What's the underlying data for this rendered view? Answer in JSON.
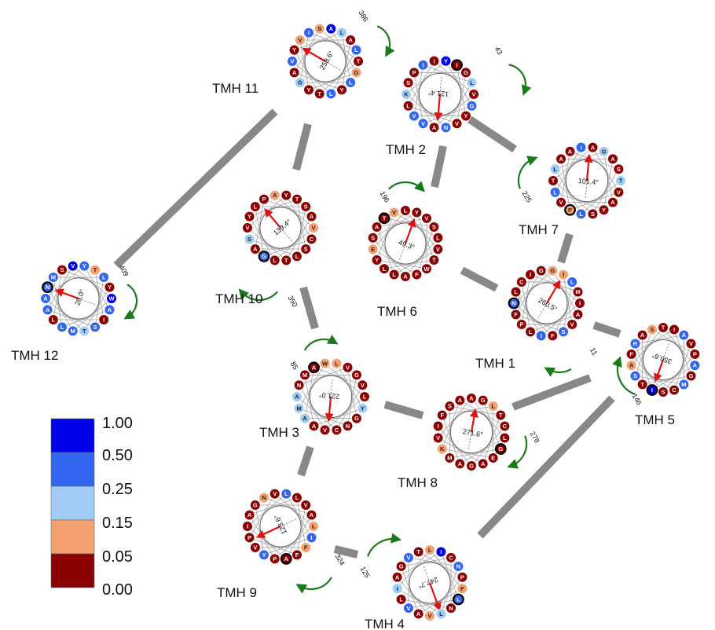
{
  "colors": {
    "scale": [
      "#8b0000",
      "#f5a070",
      "#9fcbf5",
      "#3366f0",
      "#0000e8"
    ],
    "arrow": "#e01010",
    "moment_arrow": "#1a7a1a",
    "connector": "#888888",
    "spoke": "#9a9a9a"
  },
  "legend": {
    "labels": [
      "1.00",
      "0.50",
      "0.25",
      "0.15",
      "0.05",
      "0.00"
    ]
  },
  "helices": [
    {
      "id": "tmh11",
      "label": "TMH 11",
      "angle": "258.6°",
      "start": "386",
      "start_circled": false,
      "residues": [
        {
          "c": "A",
          "v": 4
        },
        {
          "c": "G",
          "v": 1
        },
        {
          "c": "Y",
          "v": 0
        },
        {
          "c": "V",
          "v": 1
        },
        {
          "c": "A",
          "v": 0
        },
        {
          "c": "Y",
          "v": 0
        },
        {
          "c": "A",
          "v": 0
        },
        {
          "c": "S",
          "v": 1
        },
        {
          "c": "T",
          "v": 0
        },
        {
          "c": "T",
          "v": 0
        },
        {
          "c": "Y",
          "v": 0
        },
        {
          "c": "L",
          "v": 2
        },
        {
          "c": "L",
          "v": 3
        },
        {
          "c": "G",
          "v": 2
        },
        {
          "c": "I",
          "v": 3
        },
        {
          "c": "L",
          "v": 3
        },
        {
          "c": "L",
          "v": 3
        },
        {
          "c": "V",
          "v": 3
        }
      ]
    },
    {
      "id": "tmh2",
      "label": "TMH  2",
      "angle": "121.4°",
      "start": "43",
      "start_circled": true,
      "residues": [
        {
          "c": "I",
          "v": 0
        },
        {
          "c": "Y",
          "v": 0
        },
        {
          "c": "V",
          "v": 3
        },
        {
          "c": "I",
          "v": 3
        },
        {
          "c": "L",
          "v": 2
        },
        {
          "c": "N",
          "v": 3
        },
        {
          "c": "K",
          "v": 2
        },
        {
          "c": "Y",
          "v": 4
        },
        {
          "c": "G",
          "v": 3
        },
        {
          "c": "V",
          "v": 3
        },
        {
          "c": "P",
          "v": 0
        },
        {
          "c": "G",
          "v": 0
        },
        {
          "c": "V",
          "v": 0
        },
        {
          "c": "L",
          "v": 0
        },
        {
          "c": "I",
          "v": 0
        },
        {
          "c": "V",
          "v": 0
        },
        {
          "c": "A",
          "v": 0
        },
        {
          "c": "S",
          "v": 0
        }
      ]
    },
    {
      "id": "tmh7",
      "label": "TMH  7",
      "angle": "101.4°",
      "start": "225",
      "start_circled": true,
      "residues": [
        {
          "c": "T",
          "v": 2
        },
        {
          "c": "L",
          "v": 3
        },
        {
          "c": "L",
          "v": 2
        },
        {
          "c": "G",
          "v": 2
        },
        {
          "c": "A",
          "v": 0
        },
        {
          "c": "V",
          "v": 0
        },
        {
          "c": "A",
          "v": 0
        },
        {
          "c": "S",
          "v": 0
        },
        {
          "c": "S",
          "v": 0
        },
        {
          "c": "T",
          "v": 0
        },
        {
          "c": "A",
          "v": 0
        },
        {
          "c": "V",
          "v": 0
        },
        {
          "c": "P",
          "v": 1
        },
        {
          "c": "A",
          "v": 0
        },
        {
          "c": "A",
          "v": 0
        },
        {
          "c": "Y",
          "v": 0
        },
        {
          "c": "L",
          "v": 3
        },
        {
          "c": "I",
          "v": 3
        }
      ]
    },
    {
      "id": "tmh10",
      "label": "TMH 10",
      "angle": "139.4°",
      "start": "350",
      "start_circled": true,
      "residues": [
        {
          "c": "A",
          "v": 1
        },
        {
          "c": "V",
          "v": 1
        },
        {
          "c": "L",
          "v": 0
        },
        {
          "c": "Y",
          "v": 0
        },
        {
          "c": "T",
          "v": 0
        },
        {
          "c": "S",
          "v": 0
        },
        {
          "c": "A",
          "v": 0
        },
        {
          "c": "P",
          "v": 0
        },
        {
          "c": "A",
          "v": 0
        },
        {
          "c": "T",
          "v": 0
        },
        {
          "c": "V",
          "v": 0
        },
        {
          "c": "Y",
          "v": 0
        },
        {
          "c": "C",
          "v": 0
        },
        {
          "c": "G",
          "v": 3
        },
        {
          "c": "L",
          "v": 0
        },
        {
          "c": "S",
          "v": 0
        },
        {
          "c": "L",
          "v": 0
        },
        {
          "c": "S",
          "v": 2
        }
      ]
    },
    {
      "id": "tmh6",
      "label": "TMH  6",
      "angle": "49.3°",
      "start": "196",
      "start_circled": true,
      "residues": [
        {
          "c": "T",
          "v": 0
        },
        {
          "c": "S",
          "v": 0
        },
        {
          "c": "F",
          "v": 0
        },
        {
          "c": "E",
          "v": 1
        },
        {
          "c": "L",
          "v": 0
        },
        {
          "c": "V",
          "v": 0
        },
        {
          "c": "L",
          "v": 0
        },
        {
          "c": "A",
          "v": 0
        },
        {
          "c": "V",
          "v": 0
        },
        {
          "c": "W",
          "v": 0
        },
        {
          "c": "Y",
          "v": 0
        },
        {
          "c": "V",
          "v": 1
        },
        {
          "c": "L",
          "v": 0
        },
        {
          "c": "A",
          "v": 0
        },
        {
          "c": "S",
          "v": 0
        },
        {
          "c": "Y",
          "v": 0
        },
        {
          "c": "T",
          "v": 0
        },
        {
          "c": "L",
          "v": 0
        }
      ]
    },
    {
      "id": "tmh12",
      "label": "TMH 12",
      "angle": "28.0°",
      "start": "409",
      "start_circled": true,
      "residues": [
        {
          "c": "T",
          "v": 1
        },
        {
          "c": "I",
          "v": 0
        },
        {
          "c": "L",
          "v": 0
        },
        {
          "c": "S",
          "v": 0
        },
        {
          "c": "Y",
          "v": 0
        },
        {
          "c": "T",
          "v": 2
        },
        {
          "c": "A",
          "v": 3
        },
        {
          "c": "Y",
          "v": 3
        },
        {
          "c": "A",
          "v": 3
        },
        {
          "c": "L",
          "v": 3
        },
        {
          "c": "M",
          "v": 3
        },
        {
          "c": "L",
          "v": 3
        },
        {
          "c": "S",
          "v": 3
        },
        {
          "c": "A",
          "v": 3
        },
        {
          "c": "V",
          "v": 4
        },
        {
          "c": "W",
          "v": 4
        },
        {
          "c": "M",
          "v": 3
        },
        {
          "c": "N",
          "v": 3
        }
      ]
    },
    {
      "id": "tmh1",
      "label": "TMH  1",
      "angle": "260.5°",
      "start": "11",
      "start_circled": true,
      "residues": [
        {
          "c": "I",
          "v": 1
        },
        {
          "c": "V",
          "v": 0
        },
        {
          "c": "P",
          "v": 0
        },
        {
          "c": "I",
          "v": 0
        },
        {
          "c": "M",
          "v": 0
        },
        {
          "c": "F",
          "v": 0
        },
        {
          "c": "N",
          "v": 3
        },
        {
          "c": "G",
          "v": 1
        },
        {
          "c": "A",
          "v": 0
        },
        {
          "c": "L",
          "v": 0
        },
        {
          "c": "C",
          "v": 0
        },
        {
          "c": "L",
          "v": 3
        },
        {
          "c": "S",
          "v": 3
        },
        {
          "c": "F",
          "v": 0
        },
        {
          "c": "G",
          "v": 0
        },
        {
          "c": "I",
          "v": 0
        },
        {
          "c": "I",
          "v": 3
        },
        {
          "c": "L",
          "v": 0
        }
      ]
    },
    {
      "id": "tmh5",
      "label": "TMH  5",
      "angle": "350.6°",
      "start": "146",
      "start_circled": true,
      "residues": [
        {
          "c": "V",
          "v": 0
        },
        {
          "c": "C",
          "v": 0
        },
        {
          "c": "A",
          "v": 1
        },
        {
          "c": "T",
          "v": 0
        },
        {
          "c": "A",
          "v": 3
        },
        {
          "c": "I",
          "v": 4
        },
        {
          "c": "R",
          "v": 3
        },
        {
          "c": "A",
          "v": 3
        },
        {
          "c": "M",
          "v": 3
        },
        {
          "c": "S",
          "v": 3
        },
        {
          "c": "S",
          "v": 1
        },
        {
          "c": "P",
          "v": 0
        },
        {
          "c": "S",
          "v": 0
        },
        {
          "c": "F",
          "v": 0
        },
        {
          "c": "I",
          "v": 0
        },
        {
          "c": "G",
          "v": 0
        },
        {
          "c": "T",
          "v": 0
        },
        {
          "c": "A",
          "v": 0
        }
      ]
    },
    {
      "id": "tmh3",
      "label": "TMH  3",
      "angle": "221.0°",
      "start": "85",
      "start_circled": true,
      "residues": [
        {
          "c": "L",
          "v": 1
        },
        {
          "c": "Y",
          "v": 2
        },
        {
          "c": "A",
          "v": 0
        },
        {
          "c": "M",
          "v": 0
        },
        {
          "c": "G",
          "v": 0
        },
        {
          "c": "N",
          "v": 0
        },
        {
          "c": "M",
          "v": 2
        },
        {
          "c": "W",
          "v": 1
        },
        {
          "c": "L",
          "v": 0
        },
        {
          "c": "V",
          "v": 0
        },
        {
          "c": "N",
          "v": 0
        },
        {
          "c": "V",
          "v": 0
        },
        {
          "c": "G",
          "v": 0
        },
        {
          "c": "A",
          "v": 2
        },
        {
          "c": "A",
          "v": 0
        },
        {
          "c": "V",
          "v": 0
        },
        {
          "c": "C",
          "v": 0
        },
        {
          "c": "A",
          "v": 2
        }
      ]
    },
    {
      "id": "tmh8",
      "label": "TMH  8",
      "angle": "271.6°",
      "start": "278",
      "start_circled": true,
      "residues": [
        {
          "c": "G",
          "v": 0
        },
        {
          "c": "G",
          "v": 0
        },
        {
          "c": "M",
          "v": 0
        },
        {
          "c": "S",
          "v": 0
        },
        {
          "c": "T",
          "v": 0
        },
        {
          "c": "A",
          "v": 0
        },
        {
          "c": "V",
          "v": 0
        },
        {
          "c": "A",
          "v": 0
        },
        {
          "c": "L",
          "v": 0
        },
        {
          "c": "A",
          "v": 0
        },
        {
          "c": "F",
          "v": 0
        },
        {
          "c": "L",
          "v": 1
        },
        {
          "c": "E",
          "v": 0
        },
        {
          "c": "K",
          "v": 1
        },
        {
          "c": "A",
          "v": 0
        },
        {
          "c": "C",
          "v": 0
        },
        {
          "c": "G",
          "v": 0
        },
        {
          "c": "I",
          "v": 0
        }
      ]
    },
    {
      "id": "tmh9",
      "label": "TMH  9",
      "angle": "123.6°",
      "start": "324",
      "start_circled": true,
      "residues": [
        {
          "c": "N",
          "v": 1
        },
        {
          "c": "A",
          "v": 0
        },
        {
          "c": "A",
          "v": 0
        },
        {
          "c": "I",
          "v": 0
        },
        {
          "c": "L",
          "v": 3
        },
        {
          "c": "I",
          "v": 3
        },
        {
          "c": "Y",
          "v": 3
        },
        {
          "c": "G",
          "v": 0
        },
        {
          "c": "V",
          "v": 0
        },
        {
          "c": "F",
          "v": 0
        },
        {
          "c": "P",
          "v": 0
        },
        {
          "c": "V",
          "v": 0
        },
        {
          "c": "L",
          "v": 1
        },
        {
          "c": "P",
          "v": 0
        },
        {
          "c": "A",
          "v": 0
        },
        {
          "c": "L",
          "v": 0
        },
        {
          "c": "F",
          "v": 1
        },
        {
          "c": "V",
          "v": 0
        }
      ]
    },
    {
      "id": "tmh4",
      "label": "TMH  4",
      "angle": "247.7°",
      "start": "125",
      "start_circled": true,
      "residues": [
        {
          "c": "T",
          "v": 0
        },
        {
          "c": "P",
          "v": 0
        },
        {
          "c": "V",
          "v": 1
        },
        {
          "c": "A",
          "v": 0
        },
        {
          "c": "I",
          "v": 4
        },
        {
          "c": "L",
          "v": 3
        },
        {
          "c": "V",
          "v": 3
        },
        {
          "c": "V",
          "v": 3
        },
        {
          "c": "N",
          "v": 3
        },
        {
          "c": "L",
          "v": 2
        },
        {
          "c": "I",
          "v": 2
        },
        {
          "c": "L",
          "v": 1
        },
        {
          "c": "F",
          "v": 1
        },
        {
          "c": "A",
          "v": 0
        },
        {
          "c": "G",
          "v": 0
        },
        {
          "c": "C",
          "v": 0
        },
        {
          "c": "N",
          "v": 0
        },
        {
          "c": "L",
          "v": 0
        }
      ]
    }
  ]
}
